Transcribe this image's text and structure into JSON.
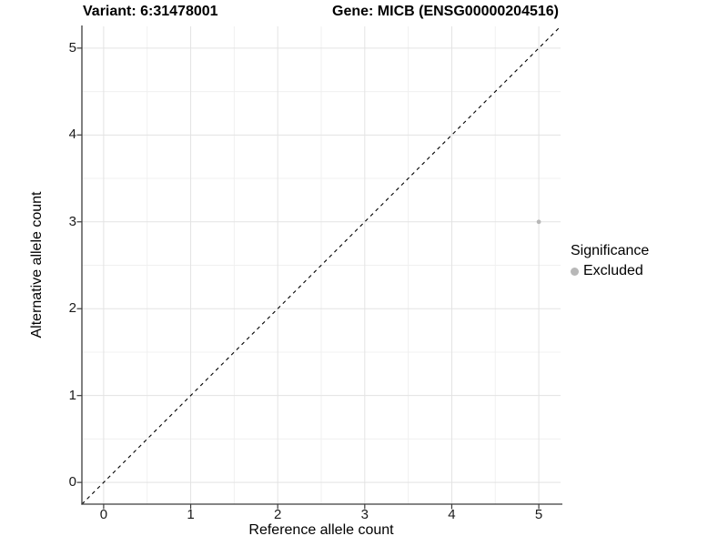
{
  "titles": {
    "left": "Variant: 6:31478001",
    "right": "Gene: MICB (ENSG00000204516)"
  },
  "chart_data": {
    "type": "scatter",
    "title": "Variant: 6:31478001 / Gene: MICB (ENSG00000204516)",
    "xlabel": "Reference allele count",
    "ylabel": "Alternative allele count",
    "xlim": [
      -0.25,
      5.25
    ],
    "ylim": [
      -0.25,
      5.25
    ],
    "x_ticks": [
      0,
      1,
      2,
      3,
      4,
      5
    ],
    "y_ticks": [
      0,
      1,
      2,
      3,
      4,
      5
    ],
    "minor_ticks": [
      0.5,
      1.5,
      2.5,
      3.5,
      4.5
    ],
    "grid": "on",
    "series": [
      {
        "name": "Excluded",
        "color": "#b8b8b8",
        "points": [
          {
            "x": 5,
            "y": 3
          }
        ]
      }
    ],
    "reference_line": {
      "type": "abline",
      "slope": 1,
      "intercept": 0,
      "style": "dashed",
      "color": "#000000"
    },
    "legend": {
      "title": "Significance",
      "position": "right",
      "items": [
        {
          "label": "Excluded",
          "color": "#b8b8b8"
        }
      ]
    }
  },
  "colors": {
    "background": "#ffffff",
    "grid_major": "#e3e3e3",
    "grid_minor": "#f0f0f0",
    "axis": "#3c3c3c",
    "point": "#b8b8b8",
    "text": "#000000"
  }
}
